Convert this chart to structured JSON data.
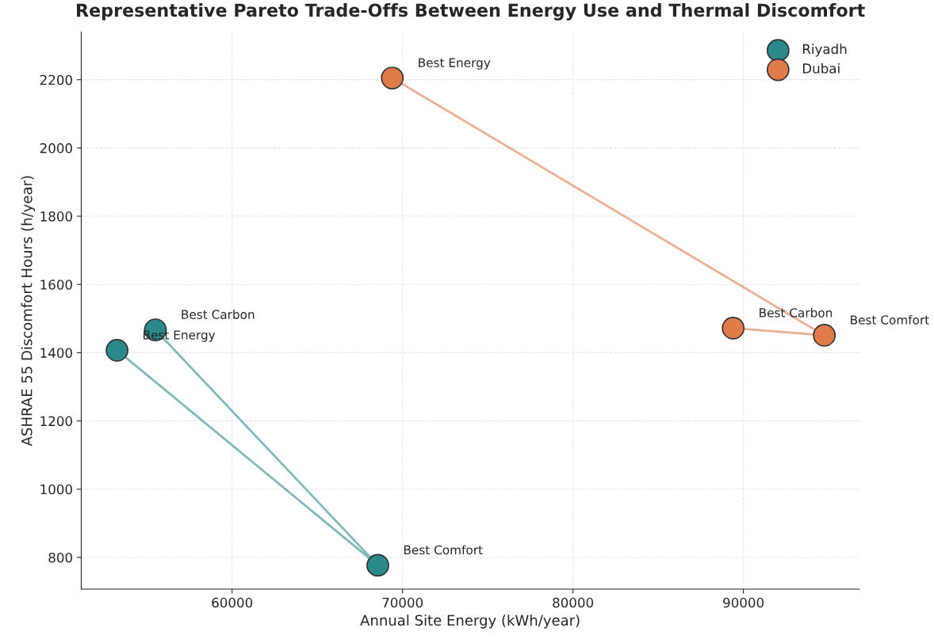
{
  "chart_data": {
    "type": "line",
    "title": "Representative Pareto Trade-Offs Between Energy Use and Thermal Discomfort",
    "xlabel": "Annual Site Energy (kWh/year)",
    "ylabel": "ASHRAE 55 Discomfort Hours (h/year)",
    "series": [
      {
        "name": "Riyadh",
        "color": "#2a8a8a",
        "x": [
          53250,
          68550,
          55500
        ],
        "values": [
          1407,
          777,
          1467
        ]
      },
      {
        "name": "Dubai",
        "color": "#e07b4a",
        "x": [
          69400,
          94750,
          89400
        ],
        "values": [
          2205,
          1451,
          1472
        ]
      }
    ],
    "annotations": [
      {
        "text": "Best Energy",
        "x": 53250,
        "y": 1407
      },
      {
        "text": "Best Comfort",
        "x": 68550,
        "y": 777
      },
      {
        "text": "Best Carbon",
        "x": 55500,
        "y": 1467
      },
      {
        "text": "Best Energy",
        "x": 69400,
        "y": 2205
      },
      {
        "text": "Best Comfort",
        "x": 94750,
        "y": 1451
      },
      {
        "text": "Best Carbon",
        "x": 89400,
        "y": 1472
      }
    ],
    "xlim": [
      51150,
      96800
    ],
    "ylim": [
      707,
      2340
    ],
    "xticks": [
      60000,
      70000,
      80000,
      90000
    ],
    "yticks": [
      800,
      1000,
      1200,
      1400,
      1600,
      1800,
      2000,
      2200
    ],
    "grid": true,
    "legend": "top right",
    "marker": "circle"
  }
}
